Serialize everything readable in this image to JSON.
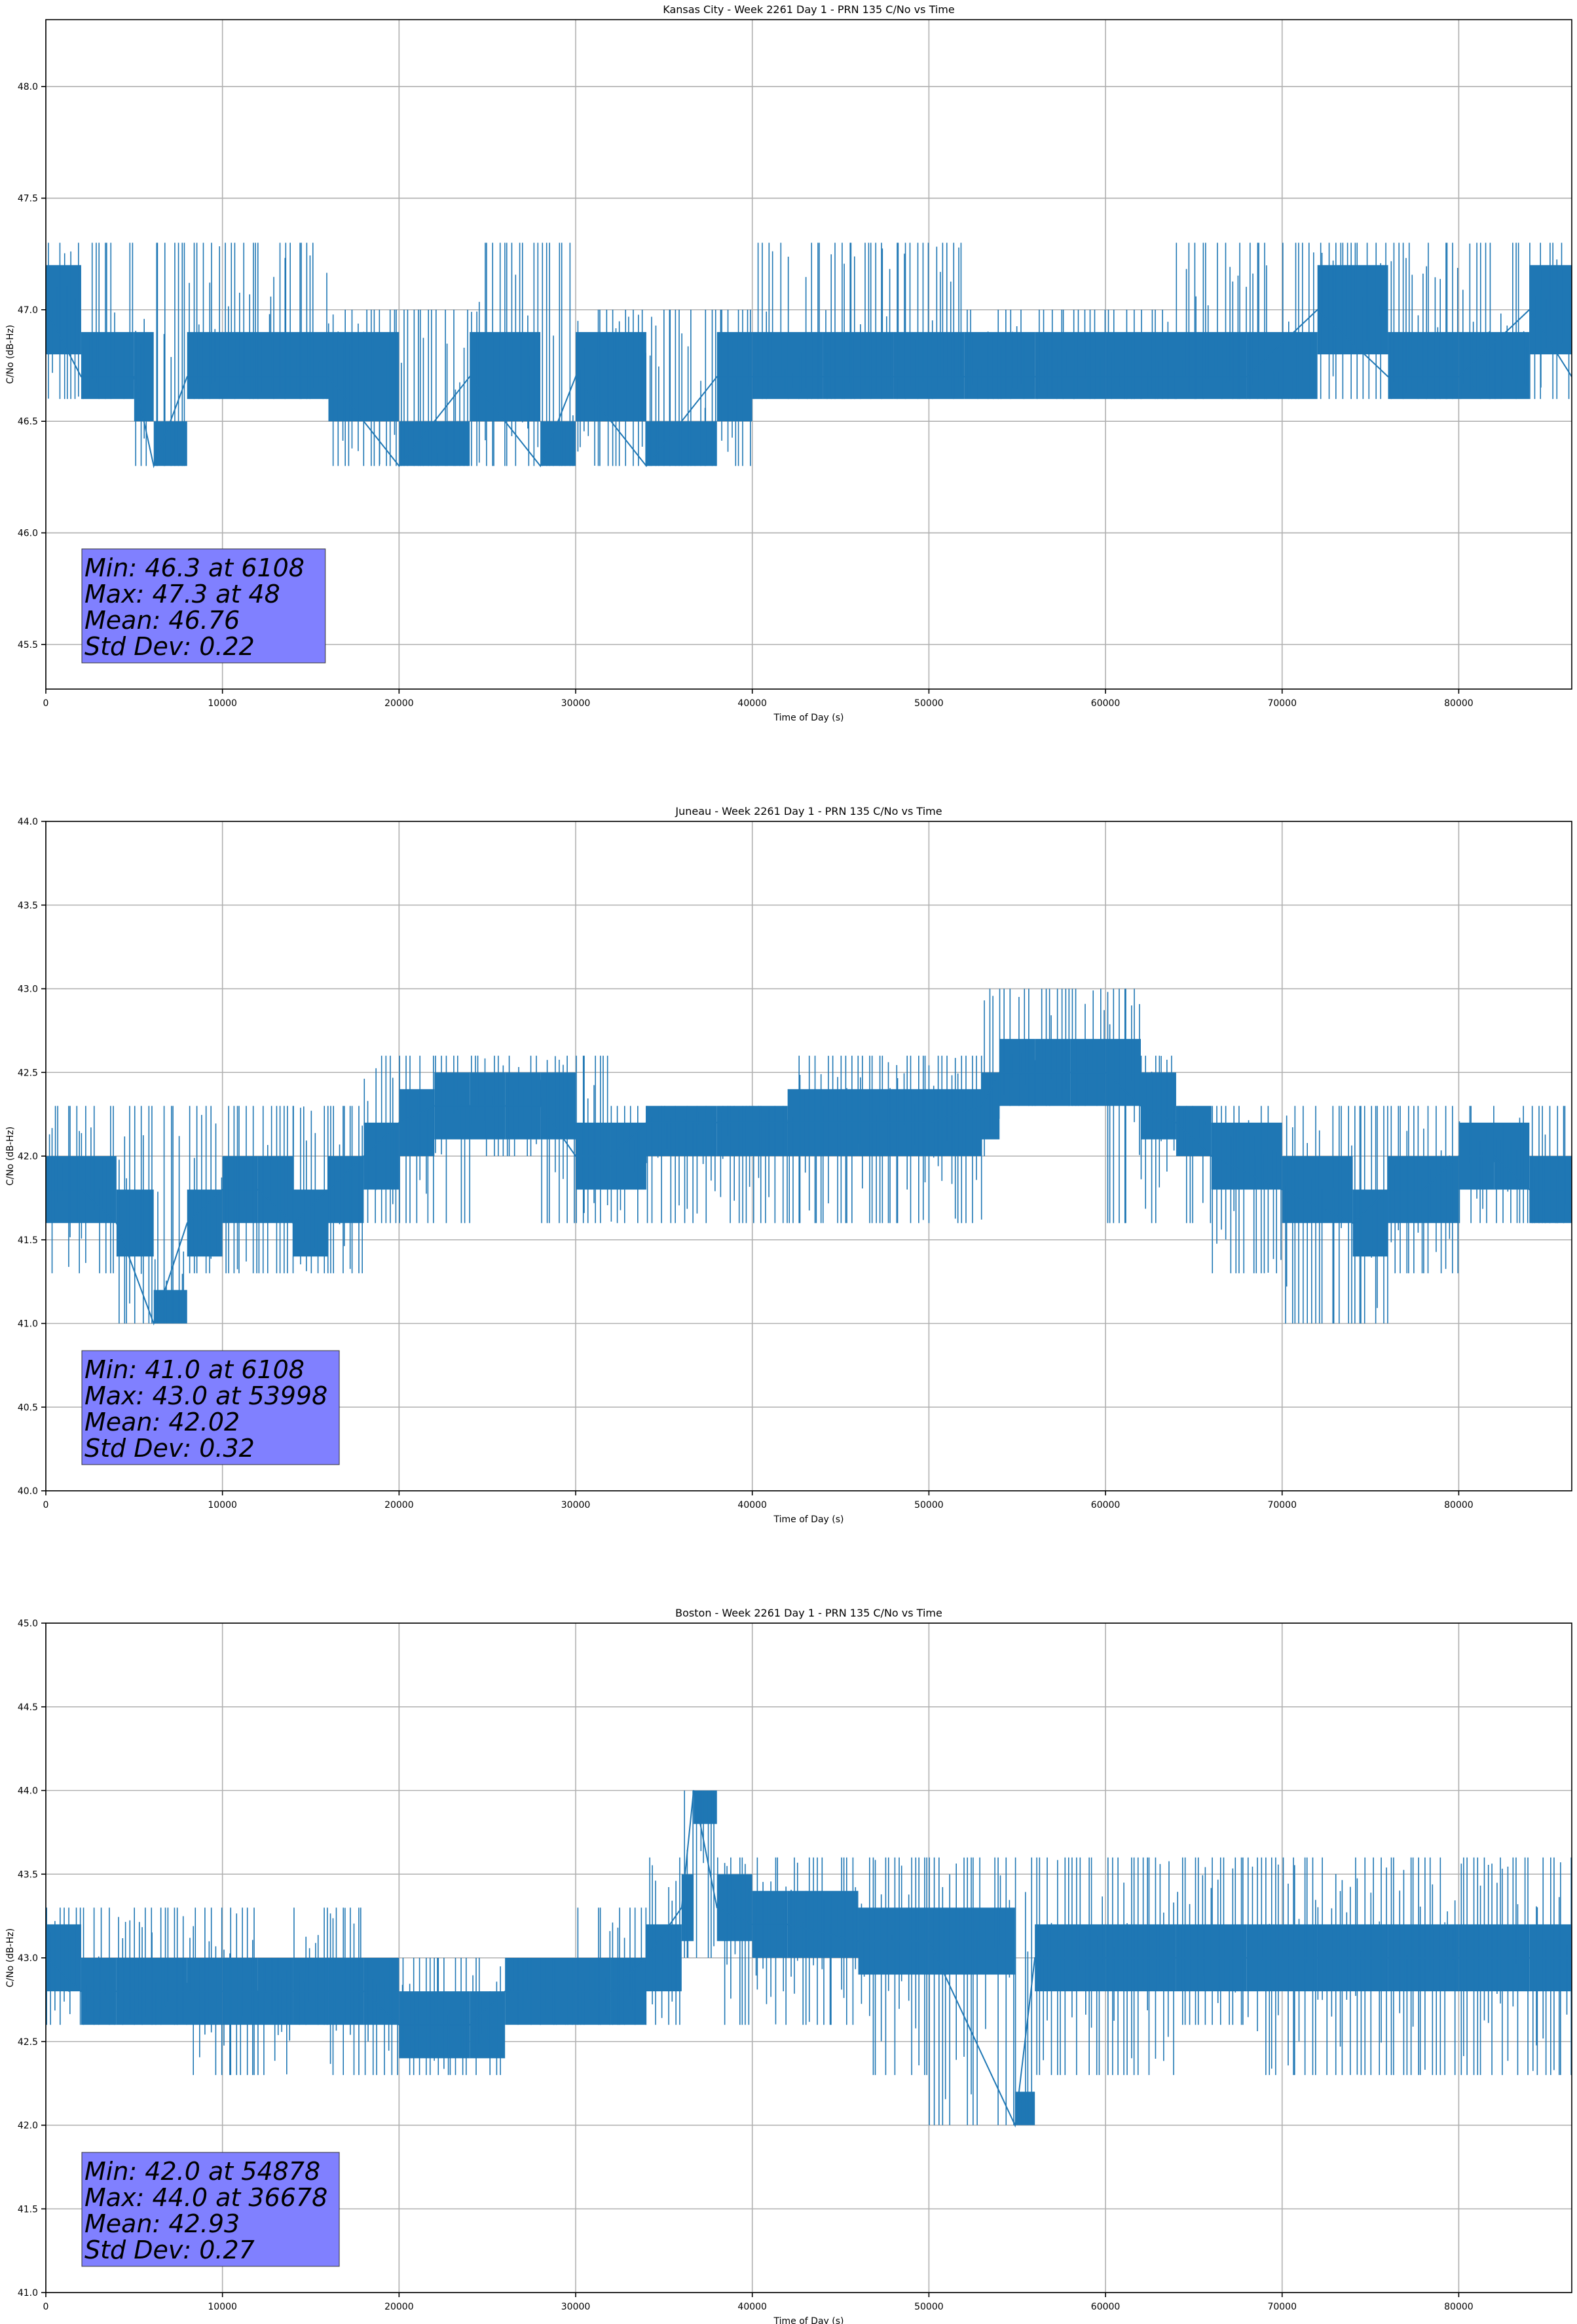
{
  "chart_data": [
    {
      "type": "line",
      "title": "Kansas City - Week 2261 Day 1 - PRN 135 C/No vs Time",
      "xlabel": "Time of Day (s)",
      "ylabel": "C/No (dB-Hz)",
      "xlim": [
        0,
        86400
      ],
      "ylim": [
        45.3,
        48.3
      ],
      "xticks": [
        0,
        10000,
        20000,
        30000,
        40000,
        50000,
        60000,
        70000,
        80000
      ],
      "xtick_labels": [
        "0",
        "10000",
        "20000",
        "30000",
        "40000",
        "50000",
        "60000",
        "70000",
        "80000"
      ],
      "yticks": [
        45.5,
        46.0,
        46.5,
        47.0,
        47.5,
        48.0
      ],
      "ytick_labels": [
        "45.5",
        "46.0",
        "46.5",
        "47.0",
        "47.5",
        "48.0"
      ],
      "grid": true,
      "color": "#1f77b4",
      "stats_lines": [
        "Min: 46.3 at 6108",
        "Max: 47.3 at 48",
        "Mean: 46.76",
        "Std Dev: 0.22"
      ],
      "series": [
        {
          "x": [
            0,
            2000,
            5000,
            6108,
            8000,
            12000,
            16000,
            20000,
            24000,
            28000,
            30000,
            34000,
            38000,
            40000,
            44000,
            48000,
            52000,
            56000,
            60000,
            64000,
            68000,
            72000,
            76000,
            80000,
            84000,
            86400
          ],
          "y": [
            47.0,
            46.7,
            46.7,
            46.3,
            46.7,
            46.7,
            46.7,
            46.3,
            46.7,
            46.3,
            46.7,
            46.3,
            46.7,
            46.7,
            46.7,
            46.7,
            46.7,
            46.7,
            46.7,
            46.7,
            46.7,
            47.0,
            46.7,
            46.7,
            47.0,
            46.7
          ],
          "band_low": [
            46.6,
            46.6,
            46.6,
            46.3,
            46.6,
            46.6,
            46.6,
            46.3,
            46.3,
            46.3,
            46.3,
            46.3,
            46.3,
            46.6,
            46.6,
            46.6,
            46.6,
            46.6,
            46.6,
            46.6,
            46.6,
            46.6,
            46.6,
            46.6,
            46.6,
            46.6
          ],
          "band_high": [
            47.3,
            47.3,
            47.0,
            47.0,
            47.3,
            47.3,
            47.0,
            47.0,
            47.0,
            47.3,
            47.0,
            47.0,
            47.0,
            47.0,
            47.3,
            47.3,
            47.0,
            47.0,
            47.0,
            47.0,
            47.3,
            47.3,
            47.3,
            47.3,
            47.3,
            47.3
          ]
        }
      ]
    },
    {
      "type": "line",
      "title": "Juneau - Week 2261 Day 1 - PRN 135 C/No vs Time",
      "xlabel": "Time of Day (s)",
      "ylabel": "C/No (dB-Hz)",
      "xlim": [
        0,
        86400
      ],
      "ylim": [
        40.0,
        44.0
      ],
      "xticks": [
        0,
        10000,
        20000,
        30000,
        40000,
        50000,
        60000,
        70000,
        80000
      ],
      "xtick_labels": [
        "0",
        "10000",
        "20000",
        "30000",
        "40000",
        "50000",
        "60000",
        "70000",
        "80000"
      ],
      "yticks": [
        40.0,
        40.5,
        41.0,
        41.5,
        42.0,
        42.5,
        43.0,
        43.5,
        44.0
      ],
      "ytick_labels": [
        "40.0",
        "40.5",
        "41.0",
        "41.5",
        "42.0",
        "42.5",
        "43.0",
        "43.5",
        "44.0"
      ],
      "grid": true,
      "color": "#1f77b4",
      "stats_lines": [
        "Min: 41.0 at 6108",
        "Max: 43.0 at 53998",
        "Mean: 42.02",
        "Std Dev: 0.32"
      ],
      "series": [
        {
          "x": [
            0,
            2000,
            4000,
            6108,
            8000,
            10000,
            12000,
            14000,
            16000,
            18000,
            20000,
            22000,
            24000,
            26000,
            28000,
            30000,
            32000,
            34000,
            38000,
            42000,
            46000,
            50000,
            53000,
            54000,
            56000,
            58000,
            60000,
            62000,
            64000,
            66000,
            70000,
            74000,
            76000,
            78000,
            80000,
            82000,
            84000,
            86400
          ],
          "y": [
            41.8,
            41.8,
            41.6,
            41.0,
            41.6,
            41.8,
            41.8,
            41.6,
            41.8,
            42.0,
            42.2,
            42.3,
            42.3,
            42.3,
            42.3,
            42.0,
            42.0,
            42.2,
            42.2,
            42.2,
            42.2,
            42.2,
            42.3,
            42.5,
            42.5,
            42.5,
            42.5,
            42.3,
            42.2,
            42.0,
            41.8,
            41.6,
            41.8,
            41.8,
            42.0,
            42.0,
            41.8,
            41.8
          ],
          "band_low": [
            41.6,
            41.3,
            41.3,
            41.0,
            41.3,
            41.3,
            41.3,
            41.6,
            41.3,
            41.6,
            41.6,
            41.6,
            42.0,
            42.0,
            42.0,
            41.6,
            41.6,
            41.6,
            41.6,
            41.6,
            41.6,
            41.6,
            42.0,
            42.3,
            42.3,
            42.3,
            42.3,
            41.6,
            41.6,
            41.6,
            41.3,
            41.0,
            41.3,
            41.3,
            41.6,
            41.6,
            41.6,
            41.6
          ],
          "band_high": [
            42.3,
            42.3,
            42.3,
            42.0,
            42.3,
            42.3,
            42.0,
            42.3,
            42.3,
            42.3,
            42.6,
            42.6,
            42.6,
            42.6,
            42.6,
            42.6,
            42.3,
            42.3,
            42.3,
            42.3,
            42.6,
            42.3,
            42.6,
            43.0,
            43.0,
            43.0,
            43.0,
            42.6,
            42.3,
            42.3,
            42.3,
            42.3,
            42.3,
            42.3,
            42.3,
            42.3,
            42.3,
            42.3
          ]
        }
      ]
    },
    {
      "type": "line",
      "title": "Boston - Week 2261 Day 1 - PRN 135 C/No vs Time",
      "xlabel": "Time of Day (s)",
      "ylabel": "C/No (dB-Hz)",
      "xlim": [
        0,
        86400
      ],
      "ylim": [
        41.0,
        45.0
      ],
      "xticks": [
        0,
        10000,
        20000,
        30000,
        40000,
        50000,
        60000,
        70000,
        80000
      ],
      "xtick_labels": [
        "0",
        "10000",
        "20000",
        "30000",
        "40000",
        "50000",
        "60000",
        "70000",
        "80000"
      ],
      "yticks": [
        41.0,
        41.5,
        42.0,
        42.5,
        43.0,
        43.5,
        44.0,
        44.5,
        45.0
      ],
      "ytick_labels": [
        "41.0",
        "41.5",
        "42.0",
        "42.5",
        "43.0",
        "43.5",
        "44.0",
        "44.5",
        "45.0"
      ],
      "grid": true,
      "color": "#1f77b4",
      "stats_lines": [
        "Min: 42.0 at 54878",
        "Max: 44.0 at 36678",
        "Mean: 42.93",
        "Std Dev: 0.27"
      ],
      "series": [
        {
          "x": [
            0,
            2000,
            4000,
            6000,
            8000,
            10000,
            12000,
            14000,
            16000,
            18000,
            20000,
            22000,
            24000,
            26000,
            28000,
            30000,
            32000,
            34000,
            36000,
            36678,
            38000,
            40000,
            42000,
            46000,
            50000,
            54878,
            56000,
            60000,
            64000,
            68000,
            72000,
            76000,
            80000,
            84000,
            86400
          ],
          "y": [
            43.0,
            42.8,
            42.8,
            42.8,
            42.8,
            42.8,
            42.8,
            42.8,
            42.8,
            42.8,
            42.6,
            42.6,
            42.6,
            42.8,
            42.8,
            42.8,
            42.8,
            43.0,
            43.3,
            44.0,
            43.3,
            43.2,
            43.2,
            43.1,
            43.1,
            42.0,
            43.0,
            43.0,
            43.0,
            43.0,
            43.0,
            43.0,
            43.0,
            43.0,
            43.0
          ],
          "band_low": [
            42.6,
            42.6,
            42.6,
            42.6,
            42.6,
            42.3,
            42.3,
            42.6,
            42.6,
            42.3,
            42.3,
            42.3,
            42.3,
            42.6,
            42.6,
            42.6,
            42.6,
            42.6,
            43.0,
            43.3,
            43.0,
            42.6,
            42.6,
            42.6,
            42.3,
            42.0,
            42.3,
            42.3,
            42.6,
            42.6,
            42.3,
            42.3,
            42.3,
            42.3,
            42.6
          ],
          "band_high": [
            43.3,
            43.3,
            43.3,
            43.3,
            43.3,
            43.3,
            43.0,
            43.0,
            43.3,
            43.0,
            43.0,
            43.0,
            43.0,
            43.0,
            43.0,
            43.0,
            43.3,
            43.3,
            43.6,
            44.0,
            43.6,
            43.6,
            43.6,
            43.6,
            43.6,
            43.3,
            43.6,
            43.6,
            43.6,
            43.6,
            43.6,
            43.6,
            43.6,
            43.6,
            43.6
          ]
        }
      ]
    }
  ]
}
